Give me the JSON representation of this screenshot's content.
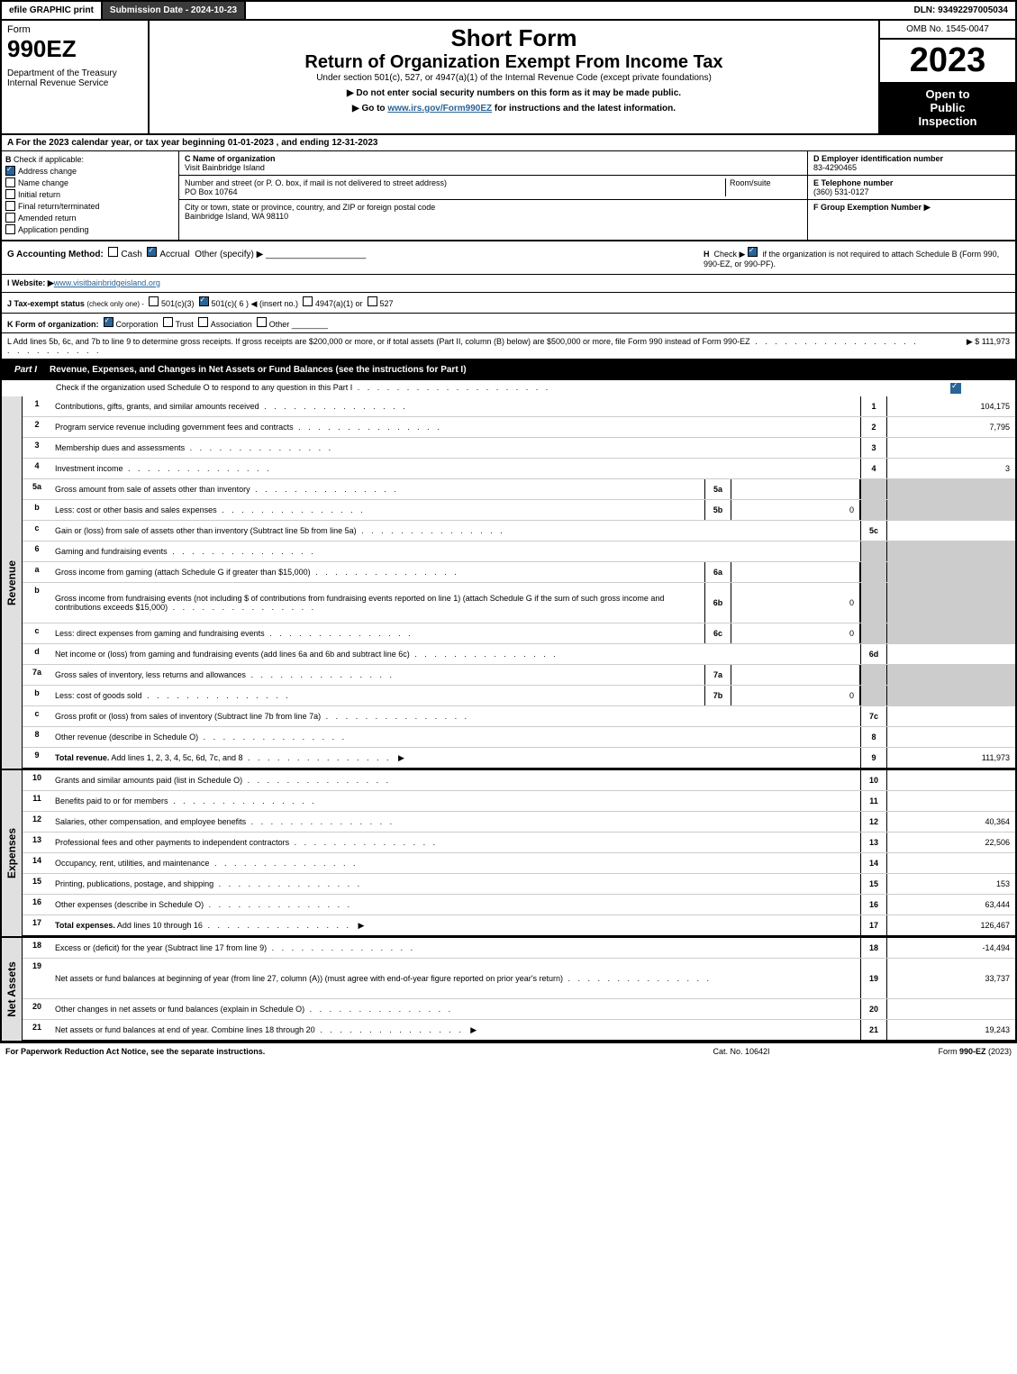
{
  "topbar": {
    "efile": "efile GRAPHIC print",
    "submission": "Submission Date - 2024-10-23",
    "dln": "DLN: 93492297005034"
  },
  "header": {
    "form_word": "Form",
    "form_number": "990EZ",
    "dept": "Department of the Treasury\nInternal Revenue Service",
    "short_form": "Short Form",
    "title": "Return of Organization Exempt From Income Tax",
    "under_section": "Under section 501(c), 527, or 4947(a)(1) of the Internal Revenue Code (except private foundations)",
    "notice1": "▶ Do not enter social security numbers on this form as it may be made public.",
    "notice2_pre": "▶ Go to ",
    "notice2_link": "www.irs.gov/Form990EZ",
    "notice2_post": " for instructions and the latest information.",
    "omb": "OMB No. 1545-0047",
    "year": "2023",
    "open1": "Open to",
    "open2": "Public",
    "open3": "Inspection"
  },
  "line_A": "A  For the 2023 calendar year, or tax year beginning 01-01-2023 , and ending 12-31-2023",
  "B": {
    "title": "Check if applicable:",
    "items": [
      {
        "label": "Address change",
        "checked": true
      },
      {
        "label": "Name change",
        "checked": false
      },
      {
        "label": "Initial return",
        "checked": false
      },
      {
        "label": "Final return/terminated",
        "checked": false
      },
      {
        "label": "Amended return",
        "checked": false
      },
      {
        "label": "Application pending",
        "checked": false
      }
    ]
  },
  "C": {
    "name_label": "C Name of organization",
    "name": "Visit Bainbridge Island",
    "street_label": "Number and street (or P. O. box, if mail is not delivered to street address)",
    "room_label": "Room/suite",
    "street": "PO Box 10764",
    "city_label": "City or town, state or province, country, and ZIP or foreign postal code",
    "city": "Bainbridge Island, WA  98110"
  },
  "D": {
    "label": "D Employer identification number",
    "value": "83-4290465"
  },
  "E": {
    "label": "E Telephone number",
    "value": "(360) 531-0127"
  },
  "F": {
    "label": "F Group Exemption Number",
    "arrow": "▶"
  },
  "G": {
    "label": "G Accounting Method:",
    "cash": "Cash",
    "accrual": "Accrual",
    "other": "Other (specify) ▶"
  },
  "H": {
    "text": "Check ▶",
    "text2": " if the organization is not required to attach Schedule B (Form 990, 990-EZ, or 990-PF)."
  },
  "I": {
    "label": "I Website: ▶",
    "value": "www.visitbainbridgeisland.org"
  },
  "J": {
    "label": "J Tax-exempt status",
    "note": "(check only one) -",
    "opt1": "501(c)(3)",
    "opt2": "501(c)( 6 ) ◀ (insert no.)",
    "opt3": "4947(a)(1) or",
    "opt4": "527"
  },
  "K": {
    "label": "K Form of organization:",
    "opts": [
      "Corporation",
      "Trust",
      "Association",
      "Other"
    ]
  },
  "L": {
    "text": "L Add lines 5b, 6c, and 7b to line 9 to determine gross receipts. If gross receipts are $200,000 or more, or if total assets (Part II, column (B) below) are $500,000 or more, file Form 990 instead of Form 990-EZ",
    "value": "▶ $ 111,973"
  },
  "partI": {
    "label": "Part I",
    "title": "Revenue, Expenses, and Changes in Net Assets or Fund Balances (see the instructions for Part I)",
    "sub": "Check if the organization used Schedule O to respond to any question in this Part I"
  },
  "revenue_side": "Revenue",
  "expenses_side": "Expenses",
  "netassets_side": "Net Assets",
  "rows_revenue": [
    {
      "n": "1",
      "desc": "Contributions, gifts, grants, and similar amounts received",
      "rn": "1",
      "rv": "104,175"
    },
    {
      "n": "2",
      "desc": "Program service revenue including government fees and contracts",
      "rn": "2",
      "rv": "7,795"
    },
    {
      "n": "3",
      "desc": "Membership dues and assessments",
      "rn": "3",
      "rv": ""
    },
    {
      "n": "4",
      "desc": "Investment income",
      "rn": "4",
      "rv": "3"
    },
    {
      "n": "5a",
      "desc": "Gross amount from sale of assets other than inventory",
      "in": "5a",
      "iv": "",
      "shaded": true
    },
    {
      "n": "b",
      "desc": "Less: cost or other basis and sales expenses",
      "in": "5b",
      "iv": "0",
      "shaded": true
    },
    {
      "n": "c",
      "desc": "Gain or (loss) from sale of assets other than inventory (Subtract line 5b from line 5a)",
      "rn": "5c",
      "rv": ""
    },
    {
      "n": "6",
      "desc": "Gaming and fundraising events",
      "shaded": true,
      "noval": true
    },
    {
      "n": "a",
      "desc": "Gross income from gaming (attach Schedule G if greater than $15,000)",
      "in": "6a",
      "iv": "",
      "shaded": true
    },
    {
      "n": "b",
      "desc": "Gross income from fundraising events (not including $                          of contributions from fundraising events reported on line 1) (attach Schedule G if the sum of such gross income and contributions exceeds $15,000)",
      "in": "6b",
      "iv": "0",
      "shaded": true,
      "tall": true
    },
    {
      "n": "c",
      "desc": "Less: direct expenses from gaming and fundraising events",
      "in": "6c",
      "iv": "0",
      "shaded": true
    },
    {
      "n": "d",
      "desc": "Net income or (loss) from gaming and fundraising events (add lines 6a and 6b and subtract line 6c)",
      "rn": "6d",
      "rv": ""
    },
    {
      "n": "7a",
      "desc": "Gross sales of inventory, less returns and allowances",
      "in": "7a",
      "iv": "",
      "shaded": true
    },
    {
      "n": "b",
      "desc": "Less: cost of goods sold",
      "in": "7b",
      "iv": "0",
      "shaded": true
    },
    {
      "n": "c",
      "desc": "Gross profit or (loss) from sales of inventory (Subtract line 7b from line 7a)",
      "rn": "7c",
      "rv": ""
    },
    {
      "n": "8",
      "desc": "Other revenue (describe in Schedule O)",
      "rn": "8",
      "rv": ""
    },
    {
      "n": "9",
      "desc": "Total revenue. Add lines 1, 2, 3, 4, 5c, 6d, 7c, and 8",
      "rn": "9",
      "rv": "111,973",
      "bold": true,
      "arrow": true
    }
  ],
  "rows_expenses": [
    {
      "n": "10",
      "desc": "Grants and similar amounts paid (list in Schedule O)",
      "rn": "10",
      "rv": ""
    },
    {
      "n": "11",
      "desc": "Benefits paid to or for members",
      "rn": "11",
      "rv": ""
    },
    {
      "n": "12",
      "desc": "Salaries, other compensation, and employee benefits",
      "rn": "12",
      "rv": "40,364"
    },
    {
      "n": "13",
      "desc": "Professional fees and other payments to independent contractors",
      "rn": "13",
      "rv": "22,506"
    },
    {
      "n": "14",
      "desc": "Occupancy, rent, utilities, and maintenance",
      "rn": "14",
      "rv": ""
    },
    {
      "n": "15",
      "desc": "Printing, publications, postage, and shipping",
      "rn": "15",
      "rv": "153"
    },
    {
      "n": "16",
      "desc": "Other expenses (describe in Schedule O)",
      "rn": "16",
      "rv": "63,444"
    },
    {
      "n": "17",
      "desc": "Total expenses. Add lines 10 through 16",
      "rn": "17",
      "rv": "126,467",
      "bold": true,
      "arrow": true
    }
  ],
  "rows_net": [
    {
      "n": "18",
      "desc": "Excess or (deficit) for the year (Subtract line 17 from line 9)",
      "rn": "18",
      "rv": "-14,494"
    },
    {
      "n": "19",
      "desc": "Net assets or fund balances at beginning of year (from line 27, column (A)) (must agree with end-of-year figure reported on prior year's return)",
      "rn": "19",
      "rv": "33,737",
      "tall": true
    },
    {
      "n": "20",
      "desc": "Other changes in net assets or fund balances (explain in Schedule O)",
      "rn": "20",
      "rv": ""
    },
    {
      "n": "21",
      "desc": "Net assets or fund balances at end of year. Combine lines 18 through 20",
      "rn": "21",
      "rv": "19,243",
      "arrow": true
    }
  ],
  "footer": {
    "left": "For Paperwork Reduction Act Notice, see the separate instructions.",
    "center": "Cat. No. 10642I",
    "right_pre": "Form ",
    "right_bold": "990-EZ",
    "right_post": " (2023)"
  }
}
